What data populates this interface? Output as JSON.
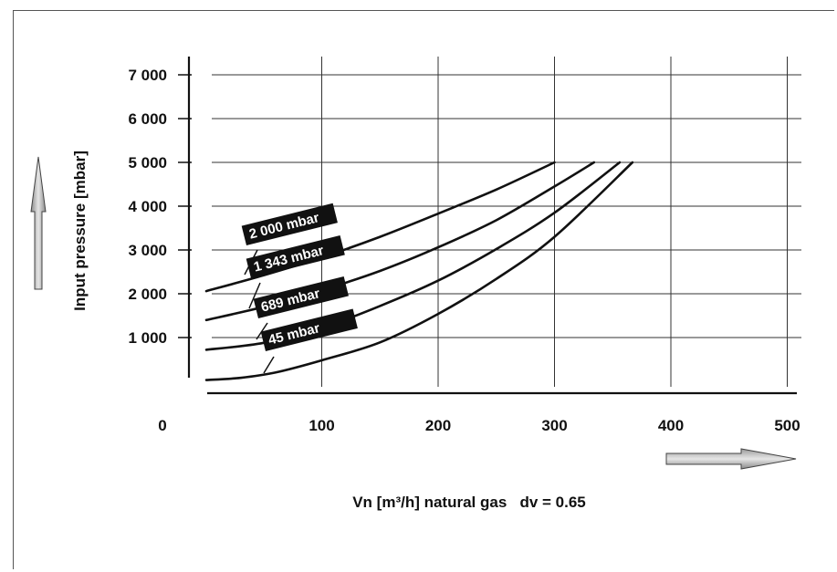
{
  "chart_data": {
    "type": "line",
    "xlabel": "Vn [m³/h] natural gas   dv = 0.65",
    "ylabel": "Input pressure [mbar]",
    "xlim": [
      -20,
      510
    ],
    "ylim": [
      0,
      7400
    ],
    "x_ticks": [
      "0",
      "100",
      "200",
      "300",
      "400",
      "500"
    ],
    "x_tick_values": [
      0,
      100,
      200,
      300,
      400,
      500
    ],
    "y_ticks": [
      "1 000",
      "2 000",
      "3 000",
      "4 000",
      "5 000",
      "6 000",
      "7 000"
    ],
    "y_tick_values": [
      1000,
      2000,
      3000,
      4000,
      5000,
      6000,
      7000
    ],
    "grid": true,
    "series": [
      {
        "name": "2 000 mbar",
        "x": [
          0,
          50,
          100,
          150,
          200,
          250,
          300
        ],
        "y": [
          2060,
          2420,
          2830,
          3300,
          3830,
          4380,
          5000
        ]
      },
      {
        "name": "1 343 mbar",
        "x": [
          0,
          50,
          100,
          150,
          200,
          250,
          300,
          334
        ],
        "y": [
          1400,
          1700,
          2080,
          2520,
          3060,
          3680,
          4450,
          5000
        ]
      },
      {
        "name": "689 mbar",
        "x": [
          0,
          50,
          100,
          150,
          200,
          250,
          300,
          356
        ],
        "y": [
          720,
          880,
          1220,
          1720,
          2300,
          3020,
          3850,
          5000
        ]
      },
      {
        "name": "45 mbar",
        "x": [
          0,
          30,
          60,
          100,
          150,
          200,
          250,
          300,
          367
        ],
        "y": [
          30,
          80,
          200,
          480,
          890,
          1540,
          2340,
          3300,
          5000
        ]
      }
    ]
  }
}
